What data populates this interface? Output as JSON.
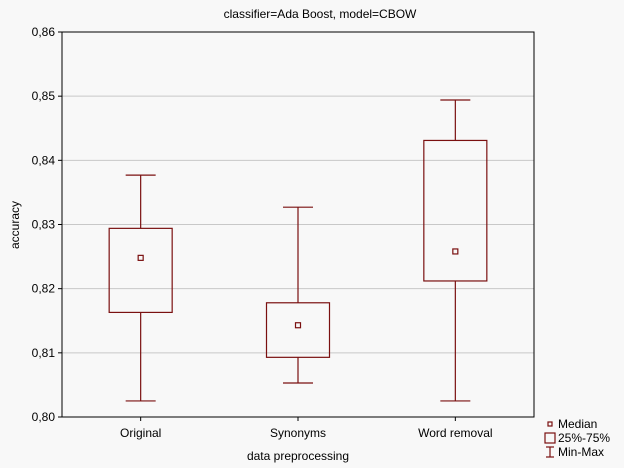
{
  "chart_data": {
    "type": "box",
    "title": "classifier=Ada Boost, model=CBOW",
    "xlabel": "data preprocessing",
    "ylabel": "accuracy",
    "ylim": [
      0.8,
      0.86
    ],
    "yticks": [
      0.8,
      0.81,
      0.82,
      0.83,
      0.84,
      0.85,
      0.86
    ],
    "ytick_labels": [
      "0,80",
      "0,81",
      "0,82",
      "0,83",
      "0,84",
      "0,85",
      "0,86"
    ],
    "grid": true,
    "categories": [
      "Original",
      "Synonyms",
      "Word removal"
    ],
    "boxes": [
      {
        "category": "Original",
        "min": 0.8025,
        "q1": 0.8163,
        "median": 0.8248,
        "q3": 0.8294,
        "max": 0.8377
      },
      {
        "category": "Synonyms",
        "min": 0.8053,
        "q1": 0.8093,
        "median": 0.8143,
        "q3": 0.8178,
        "max": 0.8327
      },
      {
        "category": "Word removal",
        "min": 0.8025,
        "q1": 0.8212,
        "median": 0.8258,
        "q3": 0.8431,
        "max": 0.8494
      }
    ],
    "legend": {
      "placement": "bottom-right",
      "entries": [
        {
          "symbol": "median",
          "label": "Median"
        },
        {
          "symbol": "box",
          "label": "25%-75%"
        },
        {
          "symbol": "whisker",
          "label": "Min-Max"
        }
      ]
    },
    "colors": {
      "box": "#7a1010",
      "grid": "#c8c8c8",
      "background": "#f8f8f8"
    }
  }
}
